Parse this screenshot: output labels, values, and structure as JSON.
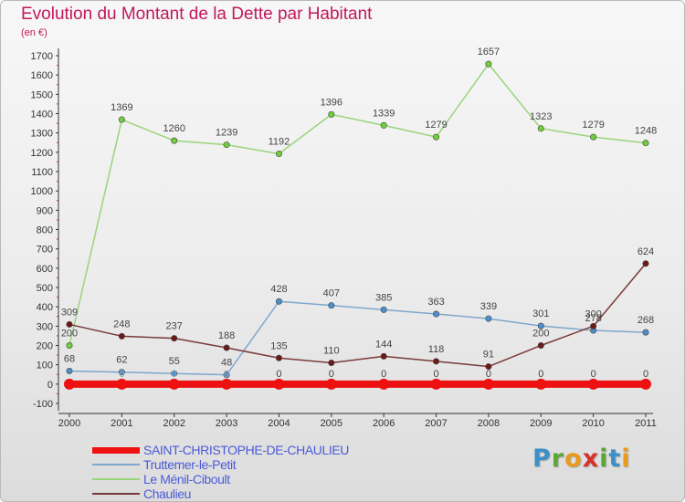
{
  "header": {
    "title": "Evolution du Montant de la Dette par Habitant",
    "subtitle": "(en €)"
  },
  "logo": {
    "text": "Proxiti",
    "letters": [
      {
        "char": "P",
        "color": "#3d8fc7"
      },
      {
        "char": "r",
        "color": "#5aa832"
      },
      {
        "char": "o",
        "color": "#e89a1c"
      },
      {
        "char": "x",
        "color": "#d8302a"
      },
      {
        "char": "i",
        "color": "#5aa832"
      },
      {
        "char": "t",
        "color": "#3d8fc7"
      },
      {
        "char": "i",
        "color": "#e89a1c"
      }
    ]
  },
  "chart_data": {
    "type": "line",
    "title": "Evolution du Montant de la Dette par Habitant",
    "subtitle": "(en €)",
    "xlabel": "",
    "ylabel": "",
    "x": [
      "2000",
      "2001",
      "2002",
      "2003",
      "2004",
      "2005",
      "2006",
      "2007",
      "2008",
      "2009",
      "2010",
      "2011"
    ],
    "ylim": [
      -100,
      1700
    ],
    "yticks": [
      -100,
      0,
      100,
      200,
      300,
      400,
      500,
      600,
      700,
      800,
      900,
      1000,
      1100,
      1200,
      1300,
      1400,
      1500,
      1600,
      1700
    ],
    "grid": false,
    "legend_position": "bottom-left",
    "series": [
      {
        "name": "SAINT-CHRISTOPHE-DE-CHAULIEU",
        "color": "#ee1111",
        "marker_color": "#ee1111",
        "thick": true,
        "values": [
          0,
          0,
          0,
          0,
          0,
          0,
          0,
          0,
          0,
          0,
          0,
          0
        ]
      },
      {
        "name": "Truttemer-le-Petit",
        "color": "#7ea7cc",
        "marker_color": "#4b8fcf",
        "thick": false,
        "values": [
          68,
          62,
          55,
          48,
          428,
          407,
          385,
          363,
          339,
          301,
          278,
          268
        ]
      },
      {
        "name": "Le Ménil-Ciboult",
        "color": "#9ad47a",
        "marker_color": "#6fcf3a",
        "thick": false,
        "values": [
          200,
          1369,
          1260,
          1239,
          1192,
          1396,
          1339,
          1279,
          1657,
          1323,
          1279,
          1248
        ]
      },
      {
        "name": "Chaulieu",
        "color": "#7a3a3a",
        "marker_color": "#6b1a1a",
        "thick": false,
        "values": [
          309,
          248,
          237,
          188,
          135,
          110,
          144,
          118,
          91,
          200,
          300,
          624
        ]
      }
    ],
    "value_labels": [
      {
        "series": 0,
        "labels": [
          "",
          "",
          "",
          "",
          "0",
          "0",
          "0",
          "0",
          "0",
          "0",
          "0",
          "0"
        ]
      },
      {
        "series": 1,
        "labels": [
          "68",
          "62",
          "55",
          "48",
          "428",
          "407",
          "385",
          "363",
          "339",
          "301",
          "278",
          "268"
        ]
      },
      {
        "series": 2,
        "labels": [
          "200",
          "1369",
          "1260",
          "1239",
          "1192",
          "1396",
          "1339",
          "1279",
          "1657",
          "1323",
          "1279",
          "1248"
        ]
      },
      {
        "series": 3,
        "labels": [
          "309",
          "248",
          "237",
          "188",
          "135",
          "110",
          "144",
          "118",
          "91",
          "200",
          "300",
          "624"
        ]
      }
    ],
    "faint_labels": [
      {
        "x": "2001",
        "text": "0"
      },
      {
        "x": "2002",
        "text": "0"
      },
      {
        "x": "2003",
        "text": "0"
      }
    ]
  }
}
